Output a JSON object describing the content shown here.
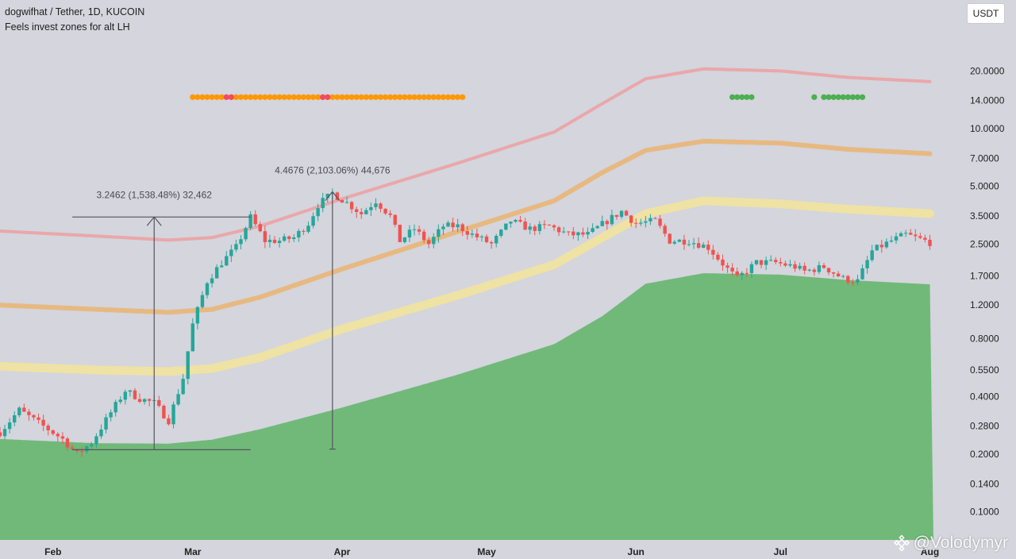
{
  "header": {
    "symbol_line": "dogwifhat / Tether, 1D, KUCOIN",
    "indicator_line": "Feels invest zones for alt LH"
  },
  "currency_badge": "USDT",
  "watermark": {
    "text": "@Volodymyr",
    "logo": "binance-logo-icon"
  },
  "colors": {
    "background": "#d4d5dd",
    "up_candle": "#26a69a",
    "down_candle": "#ef5350",
    "green_zone": "#71b979",
    "band_red": "#eba4a6",
    "band_orange": "#e8b77b",
    "band_yellow": "#efe3a0",
    "dot_orange": "#ff9800",
    "dot_red": "#f44a60",
    "dot_green": "#4caf50"
  },
  "chart_data": {
    "type": "candlestick",
    "scale": "log",
    "price_axis_ticks": [
      "20.0000",
      "14.0000",
      "10.0000",
      "7.0000",
      "5.0000",
      "3.5000",
      "2.5000",
      "1.7000",
      "1.2000",
      "0.8000",
      "0.5500",
      "0.4000",
      "0.2800",
      "0.2000",
      "0.1400",
      "0.1000"
    ],
    "time_axis_ticks": [
      "Feb",
      "Mar",
      "Apr",
      "May",
      "Jun",
      "Jul",
      "Aug"
    ],
    "x_range": [
      "2024-01-21",
      "2024-08-03"
    ],
    "ylim": [
      0.083,
      23
    ],
    "measurements": [
      {
        "label": "3.2462 (1,538.48%) 32,462",
        "from": {
          "date": "2024-02-05",
          "price": 0.211
        },
        "to": {
          "date": "2024-03-13",
          "price": 3.4572
        },
        "arrow_date": "2024-02-22"
      },
      {
        "label": "4.4676 (2,103.06%) 44,676",
        "from": {
          "date": "2024-03-30",
          "price": 0.2124
        },
        "to": {
          "date": "2024-03-30",
          "price": 4.68
        },
        "arrow_date": "2024-03-30"
      }
    ],
    "bands": [
      {
        "name": "upper",
        "color": "#eba4a6",
        "points": [
          [
            "2024-01-21",
            2.92
          ],
          [
            "2024-02-10",
            2.75
          ],
          [
            "2024-02-25",
            2.62
          ],
          [
            "2024-03-05",
            2.7
          ],
          [
            "2024-03-15",
            3.1
          ],
          [
            "2024-04-01",
            4.3
          ],
          [
            "2024-04-25",
            6.6
          ],
          [
            "2024-05-15",
            9.6
          ],
          [
            "2024-05-25",
            13.5
          ],
          [
            "2024-06-03",
            18.2
          ],
          [
            "2024-06-15",
            20.5
          ],
          [
            "2024-07-01",
            20.0
          ],
          [
            "2024-07-15",
            18.5
          ],
          [
            "2024-08-01",
            17.6
          ]
        ]
      },
      {
        "name": "middle",
        "color": "#e8b77b",
        "points": [
          [
            "2024-01-21",
            1.2
          ],
          [
            "2024-02-10",
            1.14
          ],
          [
            "2024-02-25",
            1.1
          ],
          [
            "2024-03-05",
            1.14
          ],
          [
            "2024-03-15",
            1.32
          ],
          [
            "2024-04-01",
            1.85
          ],
          [
            "2024-04-25",
            2.9
          ],
          [
            "2024-05-15",
            4.2
          ],
          [
            "2024-05-25",
            5.9
          ],
          [
            "2024-06-03",
            7.7
          ],
          [
            "2024-06-15",
            8.6
          ],
          [
            "2024-07-01",
            8.4
          ],
          [
            "2024-07-15",
            7.8
          ],
          [
            "2024-08-01",
            7.4
          ]
        ]
      },
      {
        "name": "lower",
        "color": "#efe3a0",
        "points": [
          [
            "2024-01-21",
            0.575
          ],
          [
            "2024-02-10",
            0.55
          ],
          [
            "2024-02-25",
            0.54
          ],
          [
            "2024-03-05",
            0.56
          ],
          [
            "2024-03-15",
            0.64
          ],
          [
            "2024-04-01",
            0.9
          ],
          [
            "2024-04-25",
            1.35
          ],
          [
            "2024-05-15",
            1.95
          ],
          [
            "2024-05-25",
            2.7
          ],
          [
            "2024-06-03",
            3.6
          ],
          [
            "2024-06-15",
            4.2
          ],
          [
            "2024-07-01",
            4.05
          ],
          [
            "2024-07-15",
            3.8
          ],
          [
            "2024-08-01",
            3.6
          ]
        ]
      }
    ],
    "green_zone": {
      "color": "#71b979",
      "points": [
        [
          "2024-01-21",
          0.24
        ],
        [
          "2024-02-10",
          0.228
        ],
        [
          "2024-02-25",
          0.227
        ],
        [
          "2024-03-05",
          0.238
        ],
        [
          "2024-03-15",
          0.27
        ],
        [
          "2024-04-01",
          0.35
        ],
        [
          "2024-04-25",
          0.52
        ],
        [
          "2024-05-15",
          0.75
        ],
        [
          "2024-05-25",
          1.05
        ],
        [
          "2024-06-03",
          1.55
        ],
        [
          "2024-06-15",
          1.76
        ],
        [
          "2024-07-01",
          1.73
        ],
        [
          "2024-07-15",
          1.62
        ],
        [
          "2024-08-01",
          1.54
        ]
      ]
    },
    "signal_dots": [
      {
        "color": "orange",
        "from": "2024-03-01",
        "to": "2024-04-18",
        "price": 14.6
      },
      {
        "color": "orange",
        "from": "2024-04-19",
        "to": "2024-04-26",
        "price": 14.6
      },
      {
        "color": "red",
        "from": "2024-03-08",
        "to": "2024-03-09",
        "price": 14.6
      },
      {
        "color": "red",
        "from": "2024-03-28",
        "to": "2024-03-29",
        "price": 14.6
      },
      {
        "color": "green",
        "from": "2024-06-21",
        "to": "2024-06-25",
        "price": 14.6
      },
      {
        "color": "green",
        "from": "2024-07-08",
        "to": "2024-07-08",
        "price": 14.6
      },
      {
        "color": "green",
        "from": "2024-07-10",
        "to": "2024-07-18",
        "price": 14.6
      }
    ],
    "candles_anchor": [
      [
        "2024-01-21",
        0.26
      ],
      [
        "2024-01-25",
        0.34
      ],
      [
        "2024-01-30",
        0.28
      ],
      [
        "2024-02-03",
        0.24
      ],
      [
        "2024-02-06",
        0.2
      ],
      [
        "2024-02-09",
        0.23
      ],
      [
        "2024-02-13",
        0.33
      ],
      [
        "2024-02-16",
        0.43
      ],
      [
        "2024-02-19",
        0.39
      ],
      [
        "2024-02-22",
        0.37
      ],
      [
        "2024-02-25",
        0.3
      ],
      [
        "2024-02-28",
        0.5
      ],
      [
        "2024-03-01",
        0.95
      ],
      [
        "2024-03-04",
        1.6
      ],
      [
        "2024-03-07",
        2.0
      ],
      [
        "2024-03-10",
        2.4
      ],
      [
        "2024-03-13",
        3.45
      ],
      [
        "2024-03-16",
        2.6
      ],
      [
        "2024-03-19",
        2.6
      ],
      [
        "2024-03-22",
        2.7
      ],
      [
        "2024-03-25",
        3.2
      ],
      [
        "2024-03-27",
        4.0
      ],
      [
        "2024-03-30",
        4.6
      ],
      [
        "2024-04-02",
        4.1
      ],
      [
        "2024-04-05",
        3.6
      ],
      [
        "2024-04-08",
        4.2
      ],
      [
        "2024-04-11",
        3.5
      ],
      [
        "2024-04-13",
        2.6
      ],
      [
        "2024-04-16",
        3.0
      ],
      [
        "2024-04-19",
        2.5
      ],
      [
        "2024-04-22",
        3.1
      ],
      [
        "2024-04-25",
        3.1
      ],
      [
        "2024-04-28",
        2.8
      ],
      [
        "2024-05-02",
        2.5
      ],
      [
        "2024-05-06",
        3.3
      ],
      [
        "2024-05-10",
        3.0
      ],
      [
        "2024-05-14",
        3.1
      ],
      [
        "2024-05-18",
        2.8
      ],
      [
        "2024-05-22",
        2.8
      ],
      [
        "2024-05-26",
        3.3
      ],
      [
        "2024-05-29",
        3.7
      ],
      [
        "2024-06-01",
        3.2
      ],
      [
        "2024-06-05",
        3.3
      ],
      [
        "2024-06-08",
        2.6
      ],
      [
        "2024-06-12",
        2.6
      ],
      [
        "2024-06-16",
        2.4
      ],
      [
        "2024-06-20",
        1.85
      ],
      [
        "2024-06-22",
        1.65
      ],
      [
        "2024-06-26",
        2.0
      ],
      [
        "2024-06-30",
        2.0
      ],
      [
        "2024-07-04",
        1.9
      ],
      [
        "2024-07-06",
        1.8
      ],
      [
        "2024-07-10",
        1.9
      ],
      [
        "2024-07-14",
        1.65
      ],
      [
        "2024-07-17",
        1.6
      ],
      [
        "2024-07-20",
        2.3
      ],
      [
        "2024-07-24",
        2.6
      ],
      [
        "2024-07-27",
        2.8
      ],
      [
        "2024-07-31",
        2.6
      ],
      [
        "2024-08-02",
        2.5
      ]
    ]
  }
}
